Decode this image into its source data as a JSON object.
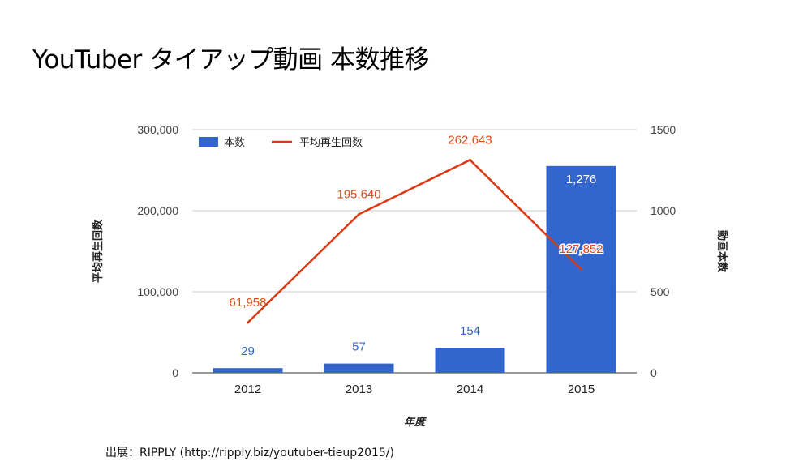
{
  "title": "YouTuber タイアップ動画 本数推移",
  "source": "出展：RIPPLY (http://ripply.biz/youtuber-tieup2015/)",
  "colors": {
    "bar": "#3366cc",
    "line": "#dc3912",
    "grid": "#cccccc",
    "bar_label_outside": "#3366cc",
    "bar_label_inside": "#ffffff"
  },
  "chart_data": {
    "type": "bar+line",
    "categories": [
      "2012",
      "2013",
      "2014",
      "2015"
    ],
    "series": [
      {
        "name": "本数",
        "kind": "bar",
        "axis": "right",
        "values": [
          29,
          57,
          154,
          1276
        ],
        "labels": [
          "29",
          "57",
          "154",
          "1,276"
        ]
      },
      {
        "name": "平均再生回数",
        "kind": "line",
        "axis": "left",
        "values": [
          61958,
          195640,
          262643,
          127852
        ],
        "labels": [
          "61,958",
          "195,640",
          "262,643",
          "127,852"
        ]
      }
    ],
    "left_axis": {
      "title": "平均再生回数",
      "range": [
        0,
        300000
      ],
      "ticks": [
        0,
        100000,
        200000,
        300000
      ],
      "tick_labels": [
        "0",
        "100,000",
        "200,000",
        "300,000"
      ]
    },
    "right_axis": {
      "title": "動画本数",
      "range": [
        0,
        1500
      ],
      "ticks": [
        0,
        500,
        1000,
        1500
      ],
      "tick_labels": [
        "0",
        "500",
        "1000",
        "1500"
      ]
    },
    "xlabel": "年度",
    "legend": {
      "position": "top-left",
      "entries": [
        "本数",
        "平均再生回数"
      ]
    },
    "grid": true
  }
}
